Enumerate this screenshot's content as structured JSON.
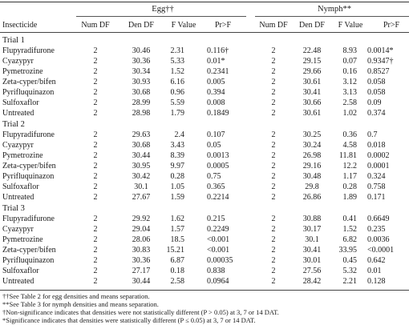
{
  "header": {
    "insecticide": "Insecticide",
    "egg": "Egg††",
    "nymph": "Nymph**",
    "cols": [
      "Num DF",
      "Den DF",
      "F Value",
      "Pr>F",
      "Num DF",
      "Den DF",
      "F Value",
      "Pr>F"
    ]
  },
  "trials": [
    {
      "label": "Trial 1",
      "rows": [
        [
          "Flupyradifurone",
          "2",
          "30.46",
          "2.31",
          "0.116†",
          "2",
          "22.48",
          "8.93",
          "0.0014*"
        ],
        [
          "Cyazypyr",
          "2",
          "30.36",
          "5.33",
          "0.01*",
          "2",
          "29.15",
          "0.07",
          "0.9347†"
        ],
        [
          "Pymetrozine",
          "2",
          "30.34",
          "1.52",
          "0.2341",
          "2",
          "29.66",
          "0.16",
          "0.8527"
        ],
        [
          "Zeta-cyper/bifen",
          "2",
          "30.93",
          "6.16",
          "0.005",
          "2",
          "30.61",
          "3.12",
          "0.058"
        ],
        [
          "Pyrifluquinazon",
          "2",
          "30.68",
          "0.96",
          "0.394",
          "2",
          "30.41",
          "3.13",
          "0.058"
        ],
        [
          "Sulfoxaflor",
          "2",
          "28.99",
          "5.59",
          "0.008",
          "2",
          "30.66",
          "2.58",
          "0.09"
        ],
        [
          "Untreated",
          "2",
          "28.98",
          "1.79",
          "0.1849",
          "2",
          "30.61",
          "1.02",
          "0.374"
        ]
      ]
    },
    {
      "label": "Trial 2",
      "rows": [
        [
          "Flupyradifurone",
          "2",
          "29.63",
          "2.4",
          "0.107",
          "2",
          "30.25",
          "0.36",
          "0.7"
        ],
        [
          "Cyazypyr",
          "2",
          "30.68",
          "3.43",
          "0.05",
          "2",
          "30.24",
          "4.58",
          "0.018"
        ],
        [
          "Pymetrozine",
          "2",
          "30.44",
          "8.39",
          "0.0013",
          "2",
          "26.98",
          "11.81",
          "0.0002"
        ],
        [
          "Zeta-cyper/bifen",
          "2",
          "30.95",
          "9.97",
          "0.0005",
          "2",
          "29.16",
          "12.2",
          "0.0001"
        ],
        [
          "Pyrifluquinazon",
          "2",
          "30.42",
          "0.28",
          "0.75",
          "2",
          "30.48",
          "1.17",
          "0.324"
        ],
        [
          "Sulfoxaflor",
          "2",
          "30.1",
          "1.05",
          "0.365",
          "2",
          "29.8",
          "0.28",
          "0.758"
        ],
        [
          "Untreated",
          "2",
          "27.67",
          "1.59",
          "0.2214",
          "2",
          "26.86",
          "1.89",
          "0.171"
        ]
      ]
    },
    {
      "label": "Trial 3",
      "rows": [
        [
          "Flupyradifurone",
          "2",
          "29.92",
          "1.62",
          "0.215",
          "2",
          "30.88",
          "0.41",
          "0.6649"
        ],
        [
          "Cyazypyr",
          "2",
          "29.04",
          "1.57",
          "0.2249",
          "2",
          "30.17",
          "1.52",
          "0.235"
        ],
        [
          "Pymetrozine",
          "2",
          "28.06",
          "18.5",
          "<0.001",
          "2",
          "30.1",
          "6.82",
          "0.0036"
        ],
        [
          "Zeta-cyper/bifen",
          "2",
          "30.83",
          "15.21",
          "<0.001",
          "2",
          "30.41",
          "33.95",
          "<0.0001"
        ],
        [
          "Pyrifluquinazon",
          "2",
          "30.36",
          "6.87",
          "0.00035",
          "2",
          "30.01",
          "0.45",
          "0.642"
        ],
        [
          "Sulfoxaflor",
          "2",
          "27.17",
          "0.18",
          "0.838",
          "2",
          "27.56",
          "5.32",
          "0.01"
        ],
        [
          "Untreated",
          "2",
          "30.44",
          "2.58",
          "0.0964",
          "2",
          "28.42",
          "2.21",
          "0.128"
        ]
      ]
    }
  ],
  "footnotes": [
    "††See Table 2 for egg densities and means separation.",
    "**See Table 3 for nymph densities and means separation.",
    "†Non-significance indicates that densities were not statistically different (P > 0.05) at 3, 7 or 14 DAT.",
    "*Significance indicates that densities were statistically different (P ≤ 0.05) at 3, 7 or 14 DAT."
  ]
}
